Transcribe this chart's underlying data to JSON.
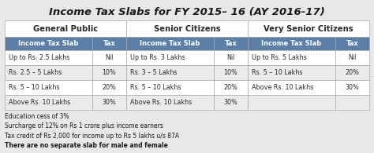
{
  "title": "Income Tax Slabs for FY 2015– 16 (AY 2016-17)",
  "title_fontsize": 9.5,
  "bg_color": "#e8e8e8",
  "table_bg": "#f5f5f5",
  "header1_bg": "#ffffff",
  "header2_bg": "#5a7fa8",
  "header2_fg": "#ffffff",
  "row_bg_alt": "#ffffff",
  "row_bg_even": "#f0f0f0",
  "sections": [
    {
      "title": "General Public",
      "rows": [
        [
          "Up to Rs. 2.5 Lakhs",
          "Nil"
        ],
        [
          "Rs. 2.5 – 5 Lakhs",
          "10%"
        ],
        [
          "Rs. 5 – 10 Lakhs",
          "20%"
        ],
        [
          "Above Rs. 10 Lakhs",
          "30%"
        ]
      ]
    },
    {
      "title": "Senior Citizens",
      "rows": [
        [
          "Up to Rs. 3 Lakhs",
          "Nil"
        ],
        [
          "Rs. 3 – 5 Lakhs",
          "10%"
        ],
        [
          "Rs. 5 – 10 Lakhs",
          "20%"
        ],
        [
          "Above Rs. 10 Lakhs",
          "30%"
        ]
      ]
    },
    {
      "title": "Very Senior Citizens",
      "rows": [
        [
          "Up to Rs. 5 Lakhs",
          "Nil"
        ],
        [
          "Rs. 5 – 10 Lakhs",
          "20%"
        ],
        [
          "Above Rs. 10 Lakhs",
          "30%"
        ],
        [
          "",
          ""
        ]
      ]
    }
  ],
  "col_header": [
    "Income Tax Slab",
    "Tax"
  ],
  "footnotes": [
    "Education cess of 3%",
    "Surcharge of 12% on Rs 1 crore plus income earners",
    "Tax credit of Rs 2,000 for income up to Rs 5 lakhs u/s 87A",
    "There are no separate slab for male and female"
  ],
  "footnote_bold_last": true
}
